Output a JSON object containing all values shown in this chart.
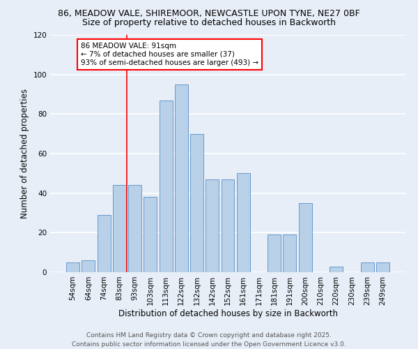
{
  "title_line1": "86, MEADOW VALE, SHIREMOOR, NEWCASTLE UPON TYNE, NE27 0BF",
  "title_line2": "Size of property relative to detached houses in Backworth",
  "xlabel": "Distribution of detached houses by size in Backworth",
  "ylabel": "Number of detached properties",
  "categories": [
    "54sqm",
    "64sqm",
    "74sqm",
    "83sqm",
    "93sqm",
    "103sqm",
    "113sqm",
    "122sqm",
    "132sqm",
    "142sqm",
    "152sqm",
    "161sqm",
    "171sqm",
    "181sqm",
    "191sqm",
    "200sqm",
    "210sqm",
    "220sqm",
    "230sqm",
    "239sqm",
    "249sqm"
  ],
  "values": [
    5,
    6,
    29,
    44,
    44,
    38,
    87,
    95,
    70,
    47,
    47,
    50,
    0,
    19,
    19,
    35,
    0,
    3,
    0,
    5,
    5
  ],
  "bar_color": "#b8d0e8",
  "bar_edge_color": "#6699cc",
  "subject_line_color": "red",
  "annotation_title": "86 MEADOW VALE: 91sqm",
  "annotation_line1": "← 7% of detached houses are smaller (37)",
  "annotation_line2": "93% of semi-detached houses are larger (493) →",
  "annotation_box_color": "white",
  "annotation_box_edge_color": "red",
  "ylim": [
    0,
    120
  ],
  "yticks": [
    0,
    20,
    40,
    60,
    80,
    100,
    120
  ],
  "footer_line1": "Contains HM Land Registry data © Crown copyright and database right 2025.",
  "footer_line2": "Contains public sector information licensed under the Open Government Licence v3.0.",
  "background_color": "#e8eef8",
  "grid_color": "white",
  "title_fontsize": 9,
  "subtitle_fontsize": 9,
  "axis_label_fontsize": 8.5,
  "tick_fontsize": 7.5,
  "annotation_fontsize": 7.5,
  "footer_fontsize": 6.5
}
